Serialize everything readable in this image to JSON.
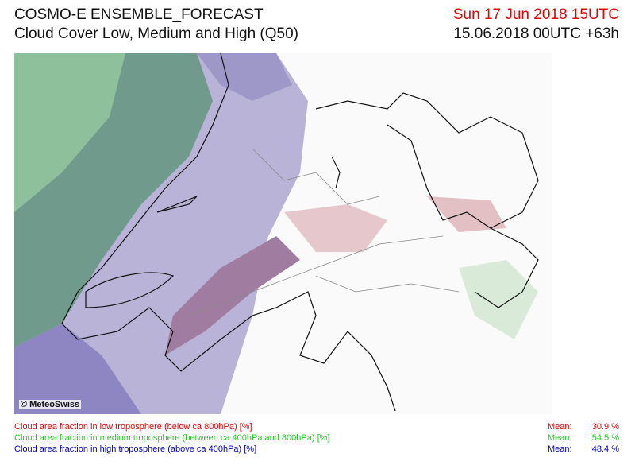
{
  "header": {
    "title": "COSMO-E ENSEMBLE_FORECAST",
    "subtitle": "Cloud Cover Low, Medium and High (Q50)",
    "valid_time": "Sun 17 Jun 2018 15UTC",
    "run": "15.06.2018 00UTC +63h"
  },
  "map": {
    "copyright": "© MeteoSwiss"
  },
  "legend": [
    {
      "label": "Cloud area fraction in low troposphere (below ca 800hPa) [%]",
      "mean_label": "Mean:",
      "mean": "30.9 %"
    },
    {
      "label": "Cloud area fraction in medium troposphere (between ca 400hPa and 800hPa) [%]",
      "mean_label": "Mean:",
      "mean": "54.5 %"
    },
    {
      "label": "Cloud area fraction in high troposphere (above ca 400hPa) [%]",
      "mean_label": "Mean:",
      "mean": "48.4 %"
    }
  ]
}
